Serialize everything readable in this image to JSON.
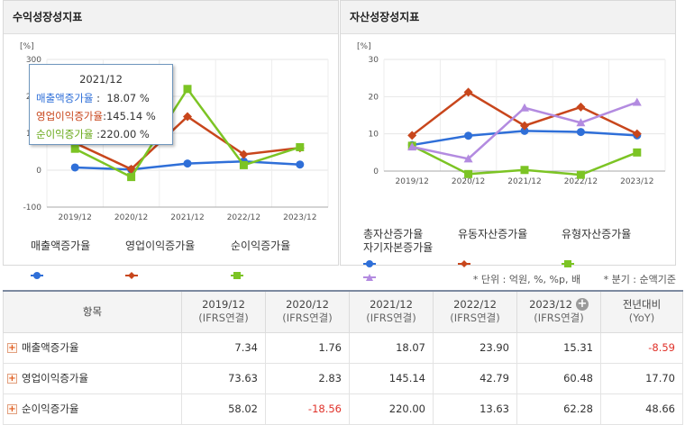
{
  "left_panel": {
    "title": "수익성장성지표",
    "unit_label": "[%]",
    "legend": [
      "매출액증가율",
      "영업이익증가율",
      "순이익증가율"
    ],
    "tooltip": {
      "period": "2021/12",
      "rows": [
        {
          "label": "매출액증가율",
          "sep": " : ",
          "value": "18.07 %"
        },
        {
          "label": "영업이익증가율",
          "sep": ":",
          "value": "145.14 %"
        },
        {
          "label": "순이익증가율",
          "sep": " :",
          "value": "220.00 %"
        }
      ]
    }
  },
  "right_panel": {
    "title": "자산성장성지표",
    "unit_label": "[%]",
    "legend": [
      "총자산증가율",
      "유동자산증가율",
      "유형자산증가율",
      "자기자본증가율"
    ]
  },
  "chart_data": [
    {
      "type": "line",
      "title": "수익성장성지표",
      "ylabel": "[%]",
      "x": [
        "2019/12",
        "2020/12",
        "2021/12",
        "2022/12",
        "2023/12"
      ],
      "ylim": [
        -100,
        300
      ],
      "yticks": [
        "300",
        "200",
        "100",
        "0",
        "-100"
      ],
      "grid": true,
      "series": [
        {
          "name": "매출액증가율",
          "color": "#2f6fd8",
          "marker": "circle",
          "values": [
            7.34,
            1.76,
            18.07,
            23.9,
            15.31
          ]
        },
        {
          "name": "영업이익증가율",
          "color": "#c8461c",
          "marker": "diamond",
          "values": [
            73.63,
            2.83,
            145.14,
            42.79,
            60.48
          ]
        },
        {
          "name": "순이익증가율",
          "color": "#7cc424",
          "marker": "square",
          "values": [
            58.02,
            -18.56,
            220.0,
            13.63,
            62.28
          ]
        }
      ]
    },
    {
      "type": "line",
      "title": "자산성장성지표",
      "ylabel": "[%]",
      "x": [
        "2019/12",
        "2020/12",
        "2021/12",
        "2022/12",
        "2023/12"
      ],
      "ylim": [
        0,
        30
      ],
      "yticks": [
        "30",
        "20",
        "10",
        "0"
      ],
      "grid": true,
      "series": [
        {
          "name": "총자산증가율",
          "color": "#2f6fd8",
          "marker": "circle",
          "values": [
            7.0,
            9.5,
            10.8,
            10.5,
            9.6
          ]
        },
        {
          "name": "유동자산증가율",
          "color": "#c8461c",
          "marker": "diamond",
          "values": [
            9.6,
            21.2,
            12.2,
            17.2,
            10.0
          ]
        },
        {
          "name": "유형자산증가율",
          "color": "#7cc424",
          "marker": "square",
          "values": [
            6.8,
            -0.8,
            0.3,
            -1.0,
            5.0
          ]
        },
        {
          "name": "자기자본증가율",
          "color": "#b38be0",
          "marker": "triangle",
          "values": [
            6.5,
            3.3,
            17.0,
            13.0,
            18.5
          ]
        }
      ]
    }
  ],
  "meta": {
    "unit_note": "* 단위 : 억원, %, %p, 배",
    "period_note": "* 분기 : 순액기준"
  },
  "table": {
    "corner": "항목",
    "columns": [
      {
        "l1": "2019/12",
        "l2": "(IFRS연결)"
      },
      {
        "l1": "2020/12",
        "l2": "(IFRS연결)"
      },
      {
        "l1": "2021/12",
        "l2": "(IFRS연결)"
      },
      {
        "l1": "2022/12",
        "l2": "(IFRS연결)"
      },
      {
        "l1": "2023/12",
        "l2": "(IFRS연결)"
      },
      {
        "l1": "전년대비",
        "l2": "(YoY)"
      }
    ],
    "rows": [
      {
        "label": "매출액증가율",
        "values": [
          "7.34",
          "1.76",
          "18.07",
          "23.90",
          "15.31",
          "-8.59"
        ]
      },
      {
        "label": "영업이익증가율",
        "values": [
          "73.63",
          "2.83",
          "145.14",
          "42.79",
          "60.48",
          "17.70"
        ]
      },
      {
        "label": "순이익증가율",
        "values": [
          "58.02",
          "-18.56",
          "220.00",
          "13.63",
          "62.28",
          "48.66"
        ]
      }
    ]
  }
}
